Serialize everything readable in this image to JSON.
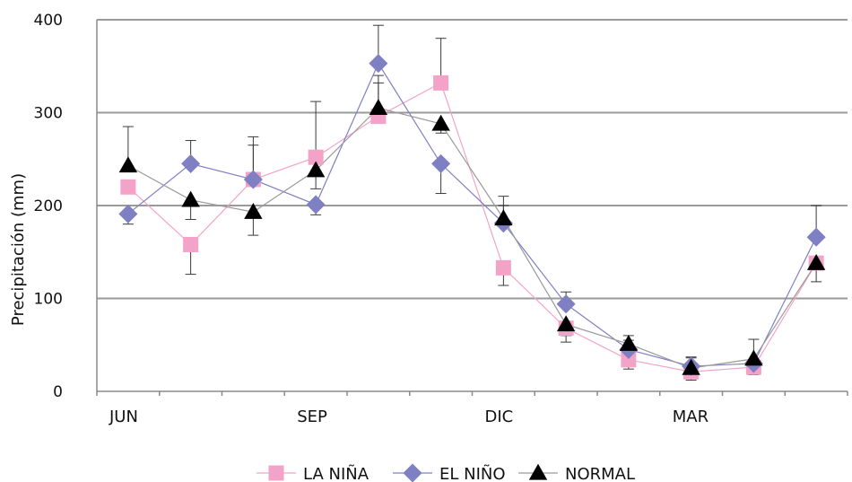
{
  "chart_data": {
    "type": "line",
    "title": "",
    "ylabel": "Precipitación (mm)",
    "xlabel": "",
    "ylim": [
      0,
      400
    ],
    "yticks": [
      0,
      100,
      200,
      300,
      400
    ],
    "months": 12,
    "xtick_labels": [
      "JUN",
      "SEP",
      "DIC",
      "MAR"
    ],
    "xtick_label_month_index": [
      0,
      3,
      6,
      9
    ],
    "grid": true,
    "legend_position": "bottom",
    "series": [
      {
        "name": "LA NIÑA",
        "color": "#f4a3c8",
        "line_color": "#f4a3c8",
        "marker": "square",
        "values": [
          220,
          158,
          228,
          252,
          296,
          332,
          133,
          68,
          34,
          21,
          26,
          138
        ],
        "error_high": [
          null,
          126,
          274,
          312,
          340,
          380,
          114,
          53,
          24,
          12,
          18,
          118
        ]
      },
      {
        "name": "EL NIÑO",
        "color": "#7f7fc4",
        "line_color": "#7f7fc4",
        "marker": "diamond",
        "values": [
          191,
          245,
          228,
          201,
          353,
          245,
          181,
          94,
          45,
          27,
          30,
          166
        ],
        "error_high": [
          180,
          270,
          265,
          190,
          394,
          213,
          200,
          107,
          55,
          37,
          34,
          200
        ]
      },
      {
        "name": "NORMAL",
        "color": "#000000",
        "line_color": "#9a9a9a",
        "marker": "triangle",
        "values": [
          243,
          206,
          193,
          238,
          305,
          288,
          186,
          72,
          51,
          25,
          35,
          138
        ],
        "error_high": [
          285,
          185,
          168,
          218,
          332,
          278,
          210,
          60,
          60,
          36,
          56,
          138
        ]
      }
    ]
  }
}
